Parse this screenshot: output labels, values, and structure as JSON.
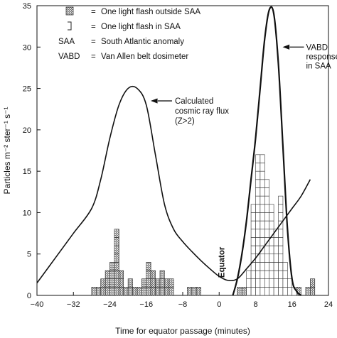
{
  "chart_data": {
    "type": "bar",
    "xlabel": "Time for equator passage (minutes)",
    "ylabel": "Particles m⁻² ster⁻¹ s⁻¹",
    "xlim": [
      -40,
      24
    ],
    "ylim": [
      0,
      35
    ],
    "x_ticks": [
      -40,
      -32,
      -24,
      -16,
      -8,
      0,
      8,
      16,
      24
    ],
    "y_ticks": [
      0,
      5,
      10,
      15,
      20,
      25,
      30,
      35
    ],
    "bin_width": 1,
    "legend": {
      "placement": "top-left",
      "entries": [
        {
          "symbol": "hatched-box",
          "eq": "=",
          "text": "One light flash outside SAA"
        },
        {
          "symbol": "bracket",
          "eq": "=",
          "text": "One light flash in SAA"
        },
        {
          "symbol": "SAA",
          "eq": "=",
          "text": "South Atlantic anomaly"
        },
        {
          "symbol": "VABD",
          "eq": "=",
          "text": "Van Allen belt dosimeter"
        }
      ]
    },
    "series": [
      {
        "name": "One light flash outside SAA",
        "style": "hatched",
        "bins": [
          {
            "x": -28,
            "count": 1
          },
          {
            "x": -27,
            "count": 1
          },
          {
            "x": -26,
            "count": 2
          },
          {
            "x": -25,
            "count": 3
          },
          {
            "x": -24,
            "count": 4
          },
          {
            "x": -23,
            "count": 8
          },
          {
            "x": -22,
            "count": 3
          },
          {
            "x": -21,
            "count": 1
          },
          {
            "x": -20,
            "count": 2
          },
          {
            "x": -19,
            "count": 1
          },
          {
            "x": -18,
            "count": 1
          },
          {
            "x": -17,
            "count": 2
          },
          {
            "x": -16,
            "count": 4
          },
          {
            "x": -15,
            "count": 3
          },
          {
            "x": -14,
            "count": 2
          },
          {
            "x": -13,
            "count": 3
          },
          {
            "x": -12,
            "count": 2
          },
          {
            "x": -11,
            "count": 2
          },
          {
            "x": -7,
            "count": 1
          },
          {
            "x": -6,
            "count": 1
          },
          {
            "x": -5,
            "count": 1
          },
          {
            "x": 4,
            "count": 1
          },
          {
            "x": 5,
            "count": 1
          },
          {
            "x": 16,
            "count": 1
          },
          {
            "x": 17,
            "count": 1
          },
          {
            "x": 19,
            "count": 1
          },
          {
            "x": 20,
            "count": 2
          }
        ]
      },
      {
        "name": "One light flash in SAA",
        "style": "grid",
        "bins": [
          {
            "x": 6,
            "count": 3
          },
          {
            "x": 7,
            "count": 11
          },
          {
            "x": 8,
            "count": 17
          },
          {
            "x": 9,
            "count": 17
          },
          {
            "x": 10,
            "count": 14
          },
          {
            "x": 11,
            "count": 11
          },
          {
            "x": 12,
            "count": 8
          },
          {
            "x": 13,
            "count": 12
          },
          {
            "x": 14,
            "count": 4
          },
          {
            "x": 15,
            "count": 2
          },
          {
            "x": 16,
            "count": 1
          }
        ]
      },
      {
        "name": "Calculated cosmic ray flux (Z>2)",
        "type": "line",
        "x": [
          -40,
          -36,
          -32,
          -28,
          -26,
          -24,
          -22,
          -20,
          -18,
          -16,
          -14,
          -12,
          -10,
          -8,
          -6,
          -4,
          -2,
          0,
          2,
          4,
          6,
          8,
          10,
          12,
          14,
          16,
          18,
          20
        ],
        "y": [
          1.5,
          4.5,
          7.5,
          10.5,
          14,
          19,
          23,
          25,
          25,
          23,
          17,
          11,
          8,
          6.5,
          5.3,
          4.2,
          3.2,
          2.3,
          1.8,
          2,
          3.2,
          4.5,
          6,
          7.5,
          9,
          10.5,
          12,
          14
        ]
      },
      {
        "name": "VABD response in SAA",
        "type": "line",
        "x": [
          3,
          4,
          5,
          6,
          7,
          8,
          9,
          10,
          11,
          12,
          13,
          14,
          15,
          16,
          17,
          18
        ],
        "y": [
          0,
          2,
          5,
          9,
          14,
          19,
          25,
          31,
          34.5,
          34,
          28,
          18,
          8,
          2,
          0.5,
          0
        ]
      }
    ],
    "annotations": [
      {
        "text_lines": [
          "Calculated",
          "cosmic ray flux",
          "(Z>2)"
        ],
        "points_to": [
          -15.5,
          23.5
        ]
      },
      {
        "text_lines": [
          "VABD",
          "response",
          "in SAA"
        ],
        "points_to": [
          13,
          30
        ]
      },
      {
        "text_lines": [
          "Equator"
        ],
        "rotated": true,
        "at": [
          0.5,
          4
        ]
      }
    ],
    "grid": false
  }
}
